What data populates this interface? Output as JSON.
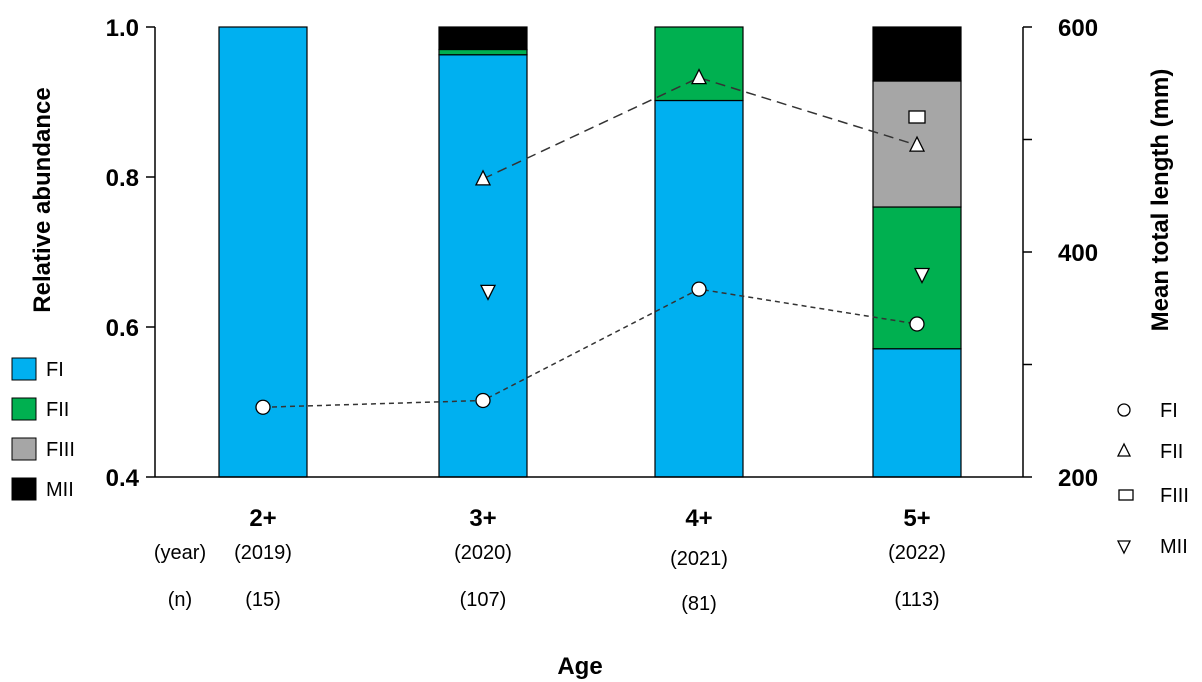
{
  "chart_data": {
    "type": "bar",
    "stacked": true,
    "categories": [
      "2+",
      "3+",
      "4+",
      "5+"
    ],
    "years": [
      "(2019)",
      "(2020)",
      "(2021)",
      "(2022)"
    ],
    "n_values": [
      "(15)",
      "(107)",
      "(81)",
      "(113)"
    ],
    "year_row_label": "(year)",
    "n_row_label": "(n)",
    "xlabel": "Age",
    "ylabel": "Relative abundance",
    "y2label": "Mean total length (mm)",
    "ylim": [
      0.4,
      1.0
    ],
    "y2lim": [
      200,
      600
    ],
    "yticks": [
      "0.4",
      "0.6",
      "0.8",
      "1.0"
    ],
    "y2ticks": [
      "200",
      "400",
      "600"
    ],
    "bar_series": [
      {
        "name": "FI",
        "color": "#00b0f0",
        "values": [
          1.0,
          0.963,
          0.902,
          0.571
        ]
      },
      {
        "name": "FII",
        "color": "#00b050",
        "values": [
          0.0,
          0.007,
          0.098,
          0.189
        ]
      },
      {
        "name": "FIII",
        "color": "#a6a6a6",
        "values": [
          0.0,
          0.0,
          0.0,
          0.168
        ]
      },
      {
        "name": "MII",
        "color": "#000000",
        "values": [
          0.0,
          0.03,
          0.0,
          0.072
        ]
      }
    ],
    "length_series": [
      {
        "name": "FI",
        "marker": "circle",
        "line": "dotted",
        "values": [
          262,
          268,
          367,
          336
        ]
      },
      {
        "name": "FII",
        "marker": "triangle-up",
        "line": "dashed",
        "values": [
          null,
          465,
          555,
          495
        ]
      },
      {
        "name": "FIII",
        "marker": "square",
        "line": "none",
        "values": [
          null,
          null,
          null,
          520
        ]
      },
      {
        "name": "MII",
        "marker": "triangle-down",
        "line": "none",
        "values": [
          null,
          365,
          null,
          380
        ]
      }
    ],
    "grid": false,
    "bar_legend_placement": "left",
    "marker_legend_placement": "right"
  }
}
